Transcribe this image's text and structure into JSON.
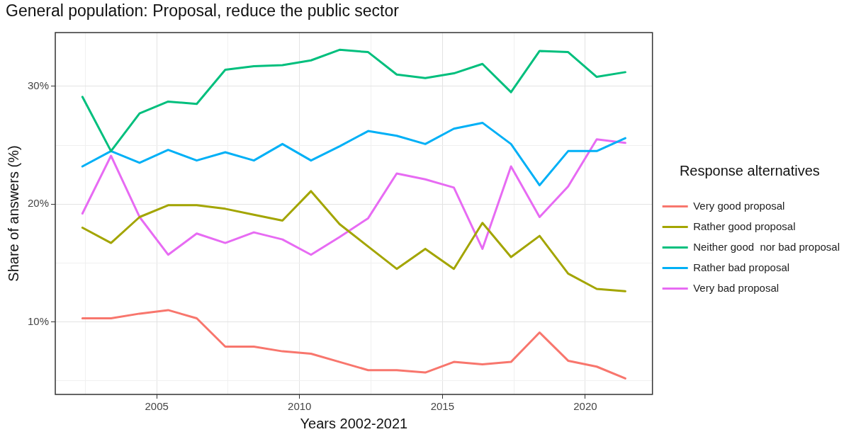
{
  "chart_data": {
    "type": "line",
    "title": "General population: Proposal, reduce the public sector",
    "xlabel": "Years 2002-2021",
    "ylabel": "Share of answers (%)",
    "legend_title": "Response alternatives",
    "legend": "right",
    "grid": true,
    "marker": "none",
    "line_style": "solid",
    "x": [
      2002.4,
      2003.4,
      2004.4,
      2005.4,
      2006.4,
      2007.4,
      2008.4,
      2009.4,
      2010.4,
      2011.4,
      2012.4,
      2013.4,
      2014.4,
      2015.4,
      2016.4,
      2017.4,
      2018.4,
      2019.4,
      2020.4,
      2021.4
    ],
    "xlim": [
      2001.45,
      2022.35
    ],
    "xticks": [
      {
        "value": 2002.5,
        "label": null
      },
      2005,
      {
        "value": 2007.5,
        "label": null
      },
      2010,
      {
        "value": 2012.5,
        "label": null
      },
      2015,
      {
        "value": 2017.5,
        "label": null
      },
      2020
    ],
    "ylim": [
      3.84,
      34.56
    ],
    "yticks": [
      {
        "value": 5,
        "label": null
      },
      {
        "value": 10,
        "label": "10%"
      },
      {
        "value": 15,
        "label": null
      },
      {
        "value": 20,
        "label": "20%"
      },
      {
        "value": 25,
        "label": null
      },
      {
        "value": 30,
        "label": "30%"
      }
    ],
    "series": [
      {
        "name": "Very good proposal",
        "color": "#f8766d",
        "values": [
          10.3,
          10.3,
          10.7,
          11.0,
          10.3,
          7.9,
          7.9,
          7.5,
          7.3,
          6.6,
          5.9,
          5.9,
          5.7,
          6.6,
          6.4,
          6.6,
          9.1,
          6.7,
          6.2,
          5.2
        ]
      },
      {
        "name": "Rather good proposal",
        "color": "#a3a500",
        "values": [
          18.0,
          16.7,
          18.9,
          19.9,
          19.9,
          19.6,
          19.1,
          18.6,
          21.1,
          18.3,
          16.4,
          14.5,
          16.2,
          14.5,
          18.4,
          15.5,
          17.3,
          14.1,
          12.8,
          12.6
        ]
      },
      {
        "name": "Neither good  nor bad proposal",
        "color": "#00bf7d",
        "values": [
          29.1,
          24.5,
          27.7,
          28.7,
          28.5,
          31.4,
          31.7,
          31.8,
          32.2,
          33.1,
          32.9,
          31.0,
          30.7,
          31.1,
          31.9,
          29.5,
          33.0,
          32.9,
          30.8,
          31.2
        ]
      },
      {
        "name": "Rather bad proposal",
        "color": "#00b0f6",
        "values": [
          23.2,
          24.5,
          23.5,
          24.6,
          23.7,
          24.4,
          23.7,
          25.1,
          23.7,
          24.9,
          26.2,
          25.8,
          25.1,
          26.4,
          26.9,
          25.1,
          21.6,
          24.5,
          24.5,
          25.6
        ]
      },
      {
        "name": "Very bad proposal",
        "color": "#e76bf3",
        "values": [
          19.2,
          24.1,
          18.9,
          15.7,
          17.5,
          16.7,
          17.6,
          17.0,
          15.7,
          17.2,
          18.8,
          22.6,
          22.1,
          21.4,
          16.2,
          23.2,
          18.9,
          21.5,
          25.5,
          25.2
        ]
      }
    ]
  }
}
